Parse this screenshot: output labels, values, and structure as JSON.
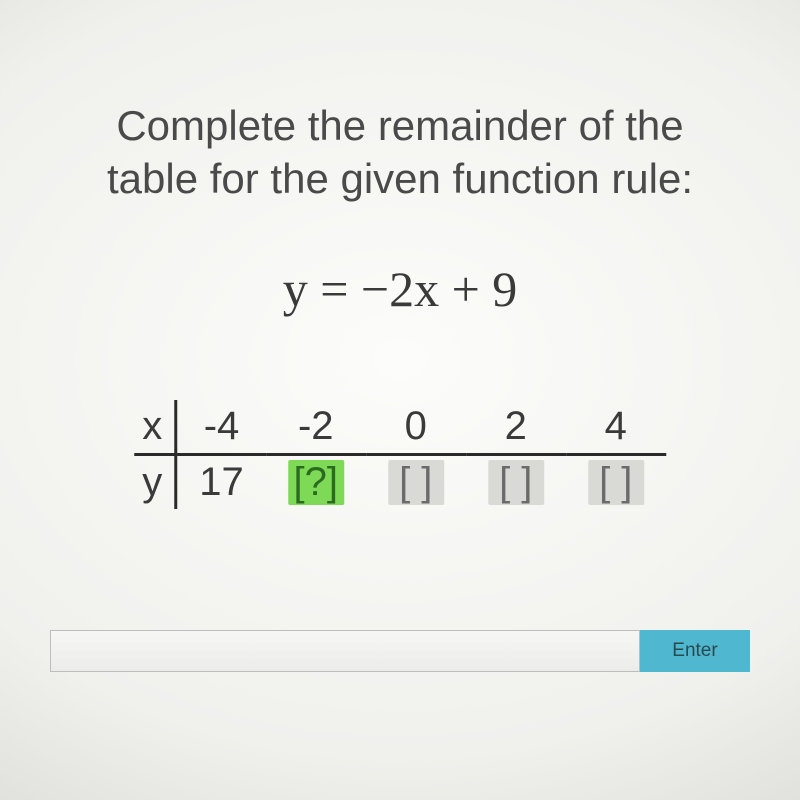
{
  "prompt": {
    "line1": "Complete the remainder of the",
    "line2": "table for the given function rule:"
  },
  "equation": "y = −2x + 9",
  "table": {
    "row_labels": {
      "x": "x",
      "y": "y"
    },
    "x_values": [
      "-4",
      "-2",
      "0",
      "2",
      "4"
    ],
    "y_values": [
      "17",
      "[?]",
      "[ ]",
      "[ ]",
      "[ ]"
    ],
    "active_blank_index": 1,
    "colors": {
      "active_bg": "#7ed957",
      "active_fg": "#2a6b1f",
      "inactive_bg": "#d9d9d6",
      "inactive_fg": "#6b6b6b",
      "border": "#2a2a2a"
    },
    "fontsize": 40
  },
  "answer": {
    "value": "",
    "placeholder": "",
    "enter_label": "Enter",
    "enter_bg": "#4fb7cf"
  }
}
